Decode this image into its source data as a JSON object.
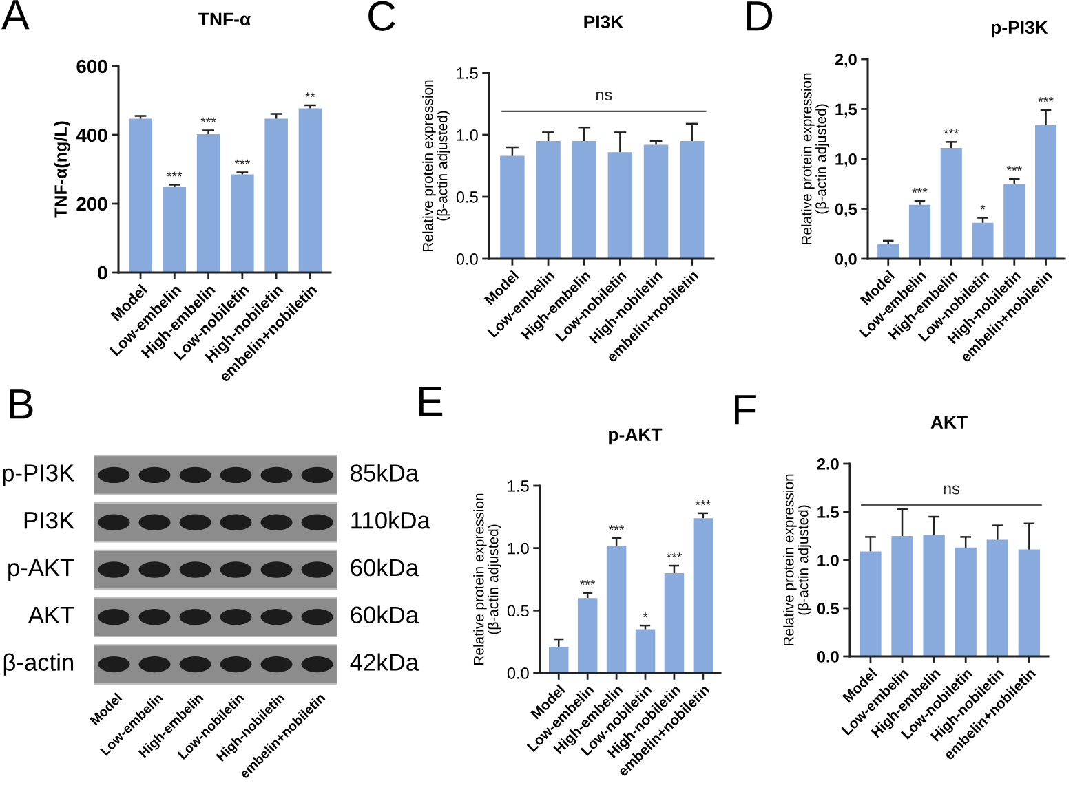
{
  "chart_data": [
    {
      "type": "bar",
      "title": "TNF-α",
      "ylabel": "TNF-α(ng/L)",
      "categories": [
        "Model",
        "Low-embelin",
        "High-embelin",
        "Low-nobiletin",
        "High-nobiletin",
        "embelin+nobiletin"
      ],
      "values": [
        447,
        248,
        402,
        285,
        447,
        477
      ],
      "errors": [
        [
          447,
          455
        ],
        [
          248,
          255
        ],
        [
          402,
          413
        ],
        [
          285,
          291
        ],
        [
          447,
          461
        ],
        [
          477,
          486
        ]
      ],
      "color": "#88aadd",
      "ylim": [
        0,
        600
      ],
      "yticks": [
        0,
        200,
        400,
        600
      ],
      "annotations": [
        "A",
        {
          "text": "***",
          "x": "Low-embelin",
          "y": 255
        },
        {
          "text": "***",
          "x": "High-embelin",
          "y": 413
        },
        {
          "text": "***",
          "x": "Low-nobiletin",
          "y": 291
        },
        {
          "text": "**",
          "x": "embelin+nobiletin",
          "y": 486
        }
      ]
    },
    {
      "type": "bar",
      "title": "PI3K",
      "ylabel": "Relative protein expression\n(β-actin adjusted)",
      "categories": [
        "Model",
        "Low-embelin",
        "High-embelin",
        "Low-nobiletin",
        "High-nobiletin",
        "embelin+nobiletin"
      ],
      "values": [
        0.83,
        0.95,
        0.95,
        0.86,
        0.92,
        0.95
      ],
      "errors": [
        [
          0.83,
          0.9
        ],
        [
          0.95,
          1.02
        ],
        [
          0.95,
          1.06
        ],
        [
          0.86,
          1.02
        ],
        [
          0.92,
          0.95
        ],
        [
          0.95,
          1.09
        ]
      ],
      "color": "#88aadd",
      "ylim": [
        0,
        1.5
      ],
      "yticks": [
        {
          "value": 0,
          "label": "0.0"
        },
        {
          "value": 0.5,
          "label": "0.5"
        },
        {
          "value": 1,
          "label": "1.0"
        },
        {
          "value": 1.5,
          "label": "1.5"
        }
      ],
      "ref_lines": [
        {
          "axis": "y",
          "value": 1.19,
          "label": "ns",
          "color": "#555555"
        }
      ],
      "annotations": [
        "C"
      ]
    },
    {
      "type": "bar",
      "title": "p-PI3K",
      "ylabel": "Relative protein expression\n(β-actin adjusted)",
      "categories": [
        "Model",
        "Low-embelin",
        "High-embelin",
        "Low-nobiletin",
        "High-nobiletin",
        "embelin+nobiletin"
      ],
      "values": [
        0.15,
        0.54,
        1.11,
        0.36,
        0.75,
        1.34
      ],
      "errors": [
        [
          0.15,
          0.18
        ],
        [
          0.54,
          0.58
        ],
        [
          1.11,
          1.17
        ],
        [
          0.36,
          0.41
        ],
        [
          0.75,
          0.8
        ],
        [
          1.34,
          1.49
        ]
      ],
      "color": "#88aadd",
      "ylim": [
        0,
        2
      ],
      "yticks": [
        {
          "value": 0,
          "label": "0,0"
        },
        {
          "value": 0.5,
          "label": "0,5"
        },
        {
          "value": 1,
          "label": "1,0"
        },
        {
          "value": 1.5,
          "label": "1,5"
        },
        {
          "value": 2,
          "label": "2,0"
        }
      ],
      "annotations": [
        "D",
        {
          "text": "***",
          "x": "Low-embelin",
          "y": 0.58
        },
        {
          "text": "***",
          "x": "High-embelin",
          "y": 1.17
        },
        {
          "text": "*",
          "x": "Low-nobiletin",
          "y": 0.41
        },
        {
          "text": "***",
          "x": "High-nobiletin",
          "y": 0.8
        },
        {
          "text": "***",
          "x": "embelin+nobiletin",
          "y": 1.49
        }
      ]
    },
    {
      "type": "other",
      "categories": [
        "Model",
        "Low-embelin",
        "High-embelin",
        "Low-nobiletin",
        "High-nobiletin",
        "embelin+nobiletin"
      ],
      "y_categories": [
        "p-PI3K",
        "PI3K",
        "p-AKT",
        "AKT",
        "β-actin"
      ],
      "y2_categories": [
        "85kDa",
        "110kDa",
        "60kDa",
        "60kDa",
        "42kDa"
      ],
      "annotations": [
        "B"
      ]
    },
    {
      "type": "bar",
      "title": "p-AKT",
      "ylabel": "Relative protein expression\n(β-actin adjusted)",
      "categories": [
        "Model",
        "Low-embelin",
        "High-embelin",
        "Low-nobiletin",
        "High-nobiletin",
        "embelin+nobiletin"
      ],
      "values": [
        0.21,
        0.6,
        1.02,
        0.35,
        0.8,
        1.24
      ],
      "errors": [
        [
          0.21,
          0.27
        ],
        [
          0.6,
          0.64
        ],
        [
          1.02,
          1.08
        ],
        [
          0.35,
          0.38
        ],
        [
          0.8,
          0.86
        ],
        [
          1.24,
          1.28
        ]
      ],
      "color": "#88aadd",
      "ylim": [
        0,
        1.5
      ],
      "yticks": [
        {
          "value": 0,
          "label": "0.0"
        },
        {
          "value": 0.5,
          "label": "0.5"
        },
        {
          "value": 1,
          "label": "1.0"
        },
        {
          "value": 1.5,
          "label": "1.5"
        }
      ],
      "annotations": [
        "E",
        {
          "text": "***",
          "x": "Low-embelin",
          "y": 0.64
        },
        {
          "text": "***",
          "x": "High-embelin",
          "y": 1.08
        },
        {
          "text": "*",
          "x": "Low-nobiletin",
          "y": 0.38
        },
        {
          "text": "***",
          "x": "High-nobiletin",
          "y": 0.86
        },
        {
          "text": "***",
          "x": "embelin+nobiletin",
          "y": 1.28
        }
      ]
    },
    {
      "type": "bar",
      "title": "AKT",
      "ylabel": "Relative protein expression\n(β-actin adjusted)",
      "categories": [
        "Model",
        "Low-embelin",
        "High-embelin",
        "Low-nobiletin",
        "High-nobiletin",
        "embelin+nobiletin"
      ],
      "values": [
        1.09,
        1.25,
        1.26,
        1.13,
        1.21,
        1.11
      ],
      "errors": [
        [
          1.09,
          1.24
        ],
        [
          1.25,
          1.53
        ],
        [
          1.26,
          1.45
        ],
        [
          1.13,
          1.24
        ],
        [
          1.21,
          1.36
        ],
        [
          1.11,
          1.38
        ]
      ],
      "color": "#88aadd",
      "ylim": [
        0,
        2
      ],
      "yticks": [
        {
          "value": 0,
          "label": "0.0"
        },
        {
          "value": 0.5,
          "label": "0.5"
        },
        {
          "value": 1,
          "label": "1.0"
        },
        {
          "value": 1.5,
          "label": "1.5"
        },
        {
          "value": 2,
          "label": "2.0"
        }
      ],
      "ref_lines": [
        {
          "axis": "y",
          "value": 1.57,
          "label": "ns",
          "color": "#555555"
        }
      ],
      "annotations": [
        "F"
      ]
    }
  ]
}
